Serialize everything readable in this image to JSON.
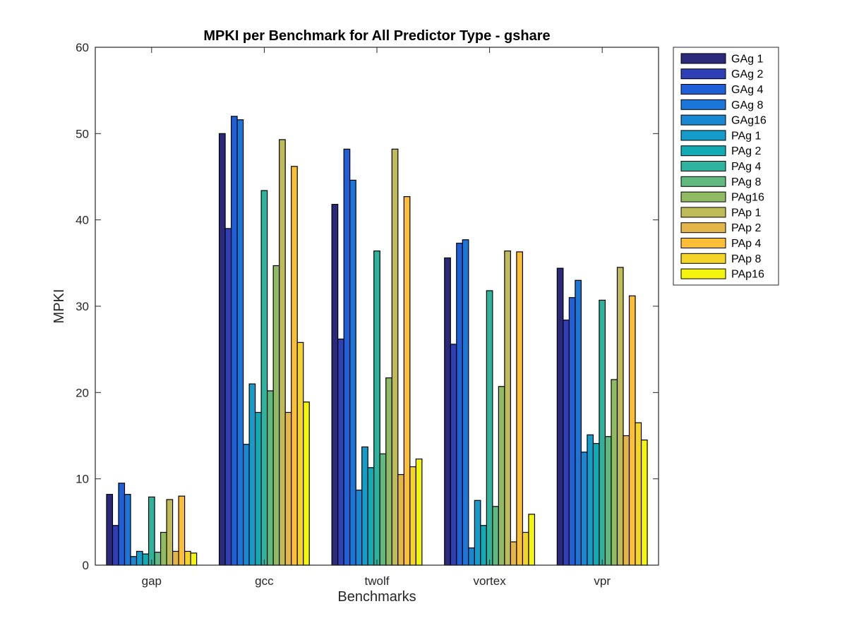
{
  "chart_data": {
    "type": "bar",
    "title": "MPKI per Benchmark for All Predictor Type - gshare",
    "xlabel": "Benchmarks",
    "ylabel": "MPKI",
    "ylim": [
      0,
      60
    ],
    "yticks": [
      0,
      10,
      20,
      30,
      40,
      50,
      60
    ],
    "grid": false,
    "legend_position": "outside-top-right",
    "categories": [
      "gap",
      "gcc",
      "twolf",
      "vortex",
      "vpr"
    ],
    "series": [
      {
        "name": "GAg 1",
        "color": "#2b2a7a",
        "values": [
          8.2,
          50.0,
          41.8,
          35.6,
          34.4
        ]
      },
      {
        "name": "GAg 2",
        "color": "#2f3fb5",
        "values": [
          4.6,
          39.0,
          26.2,
          25.6,
          28.4
        ]
      },
      {
        "name": "GAg 4",
        "color": "#1f5fd8",
        "values": [
          9.5,
          52.0,
          48.2,
          37.3,
          31.0
        ]
      },
      {
        "name": "GAg 8",
        "color": "#1c75d9",
        "values": [
          8.2,
          51.6,
          44.6,
          37.7,
          33.0
        ]
      },
      {
        "name": "GAg16",
        "color": "#1a87d2",
        "values": [
          1.0,
          14.0,
          8.7,
          2.0,
          13.1
        ]
      },
      {
        "name": "PAg 1",
        "color": "#169ccb",
        "values": [
          1.6,
          21.0,
          13.7,
          7.5,
          15.1
        ]
      },
      {
        "name": "PAg 2",
        "color": "#12aab5",
        "values": [
          1.3,
          17.7,
          11.3,
          4.6,
          14.1
        ]
      },
      {
        "name": "PAg 4",
        "color": "#2eb49e",
        "values": [
          7.9,
          43.4,
          36.4,
          31.8,
          30.7
        ]
      },
      {
        "name": "PAg 8",
        "color": "#60b97e",
        "values": [
          1.5,
          20.2,
          12.9,
          6.8,
          14.9
        ]
      },
      {
        "name": "PAg16",
        "color": "#90bb62",
        "values": [
          3.8,
          34.7,
          21.7,
          20.7,
          21.5
        ]
      },
      {
        "name": "PAp 1",
        "color": "#bfbb58",
        "values": [
          7.6,
          49.3,
          48.2,
          36.4,
          34.5
        ]
      },
      {
        "name": "PAp 2",
        "color": "#e4b548",
        "values": [
          1.6,
          17.7,
          10.5,
          2.7,
          15.0
        ]
      },
      {
        "name": "PAp 4",
        "color": "#fbbe36",
        "values": [
          8.0,
          46.2,
          42.7,
          36.3,
          31.2
        ]
      },
      {
        "name": "PAp 8",
        "color": "#f5d42a",
        "values": [
          1.6,
          25.8,
          11.4,
          3.8,
          16.5
        ]
      },
      {
        "name": "PAp16",
        "color": "#f4f40f",
        "values": [
          1.4,
          18.9,
          12.3,
          5.9,
          14.5
        ]
      }
    ]
  }
}
